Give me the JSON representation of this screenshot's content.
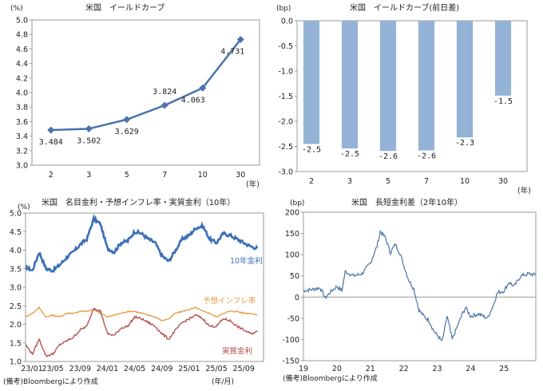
{
  "chart_data": [
    {
      "id": "yield_curve",
      "type": "line",
      "title": "米国　イールドカーブ",
      "ylabel": "(%)",
      "xlabel": "(年)",
      "categories": [
        "2",
        "3",
        "5",
        "7",
        "10",
        "30"
      ],
      "values": [
        3.484,
        3.502,
        3.629,
        3.824,
        4.063,
        4.731
      ],
      "data_labels": [
        "3.484",
        "3.502",
        "3.629",
        "3.824",
        "4.063",
        "4.731"
      ],
      "ylim": [
        3.0,
        5.0
      ],
      "yticks": [
        "5.0",
        "4.8",
        "4.6",
        "4.4",
        "4.2",
        "4.0",
        "3.8",
        "3.6",
        "3.4",
        "3.2",
        "3.0"
      ],
      "color": "#4a72ab",
      "marker": "diamond",
      "grid": false
    },
    {
      "id": "yield_curve_change",
      "type": "bar",
      "title": "米国　イールドカーブ(前日差)",
      "ylabel": "(bp)",
      "xlabel": "(年)",
      "categories": [
        "2",
        "3",
        "5",
        "7",
        "10",
        "30"
      ],
      "values": [
        -2.45,
        -2.54,
        -2.59,
        -2.58,
        -2.32,
        -1.49
      ],
      "data_labels": [
        "-2.5",
        "-2.5",
        "-2.6",
        "-2.6",
        "-2.3",
        "-1.5"
      ],
      "ylim": [
        -3.0,
        0.0
      ],
      "yticks": [
        "0.0",
        "-0.5",
        "-1.0",
        "-1.5",
        "-2.0",
        "-2.5",
        "-3.0"
      ],
      "color": "#95b3d7",
      "grid": false
    },
    {
      "id": "nominal_breakeven_real",
      "type": "line",
      "title": "米国　名目金利・予想インフレ率・実質金利（10年）",
      "ylabel": "(%)",
      "xlabel": "(年/月)",
      "source": "(備考)Bloombergにより作成",
      "x_ticks": [
        "23/01",
        "23/05",
        "23/09",
        "24/01",
        "24/05",
        "24/09",
        "25/01",
        "25/05",
        "25/09"
      ],
      "x_range": [
        "2023-01",
        "2025-11"
      ],
      "ylim": [
        1.0,
        5.0
      ],
      "yticks": [
        "5.0",
        "4.5",
        "4.0",
        "3.5",
        "3.0",
        "2.5",
        "2.0",
        "1.5",
        "1.0"
      ],
      "x_months": [
        0,
        1,
        2,
        3,
        4,
        5,
        6,
        7,
        8,
        9,
        10,
        11,
        12,
        13,
        14,
        15,
        16,
        17,
        18,
        19,
        20,
        21,
        22,
        23,
        24,
        25,
        26,
        27,
        28,
        29,
        30,
        31,
        32,
        33,
        34
      ],
      "series": [
        {
          "name": "10年金利",
          "color": "#3b6fb6",
          "values": [
            3.55,
            3.45,
            3.95,
            3.5,
            3.45,
            3.6,
            3.8,
            3.95,
            4.15,
            4.3,
            4.85,
            4.7,
            4.05,
            3.95,
            4.2,
            4.25,
            4.5,
            4.45,
            4.3,
            4.2,
            3.85,
            3.7,
            4.0,
            4.3,
            4.4,
            4.6,
            4.65,
            4.3,
            4.2,
            4.45,
            4.4,
            4.3,
            4.2,
            4.1,
            4.05
          ]
        },
        {
          "name": "予想インフレ率",
          "color": "#e49a45",
          "values": [
            2.2,
            2.3,
            2.45,
            2.2,
            2.25,
            2.2,
            2.3,
            2.3,
            2.35,
            2.35,
            2.4,
            2.3,
            2.2,
            2.25,
            2.3,
            2.35,
            2.35,
            2.3,
            2.25,
            2.2,
            2.1,
            2.15,
            2.3,
            2.35,
            2.4,
            2.45,
            2.35,
            2.3,
            2.2,
            2.3,
            2.35,
            2.35,
            2.3,
            2.3,
            2.25
          ]
        },
        {
          "name": "実質金利",
          "color": "#b24a48",
          "values": [
            1.45,
            1.2,
            1.6,
            1.15,
            1.2,
            1.45,
            1.55,
            1.65,
            1.85,
            1.95,
            2.45,
            2.35,
            1.75,
            1.7,
            1.9,
            1.95,
            2.2,
            2.15,
            2.05,
            1.95,
            1.75,
            1.6,
            1.85,
            2.05,
            2.15,
            2.25,
            2.15,
            1.95,
            1.95,
            2.15,
            2.1,
            1.95,
            1.85,
            1.75,
            1.8
          ]
        }
      ],
      "grid": false
    },
    {
      "id": "term_spread",
      "type": "line",
      "title": "米国　長短金利差（2年10年）",
      "ylabel": "(bp)",
      "source": "(備考)Bloombergにより作成",
      "x_ticks": [
        "19",
        "20",
        "21",
        "22",
        "23",
        "24",
        "25"
      ],
      "x_range": [
        2019.0,
        2025.95
      ],
      "ylim": [
        -150,
        200
      ],
      "yticks": [
        "200",
        "150",
        "100",
        "50",
        "0",
        "-50",
        "-100",
        "-150"
      ],
      "x_years": [
        2019.0,
        2019.25,
        2019.5,
        2019.65,
        2019.85,
        2020.0,
        2020.15,
        2020.25,
        2020.5,
        2020.75,
        2021.0,
        2021.2,
        2021.3,
        2021.45,
        2021.6,
        2021.75,
        2021.9,
        2022.0,
        2022.15,
        2022.3,
        2022.45,
        2022.6,
        2022.75,
        2022.9,
        2023.0,
        2023.15,
        2023.3,
        2023.45,
        2023.6,
        2023.75,
        2023.85,
        2024.0,
        2024.25,
        2024.5,
        2024.65,
        2024.8,
        2025.0,
        2025.15,
        2025.3,
        2025.5,
        2025.75,
        2025.95
      ],
      "values": [
        15,
        18,
        22,
        -2,
        15,
        25,
        15,
        60,
        50,
        55,
        80,
        120,
        155,
        140,
        105,
        125,
        100,
        75,
        40,
        20,
        -30,
        -45,
        -55,
        -80,
        -90,
        -105,
        -45,
        -100,
        -70,
        -40,
        -25,
        -45,
        -40,
        -50,
        -25,
        10,
        15,
        35,
        25,
        50,
        55,
        52
      ],
      "color": "#4a72ab",
      "zero_line": true,
      "grid": false
    }
  ]
}
